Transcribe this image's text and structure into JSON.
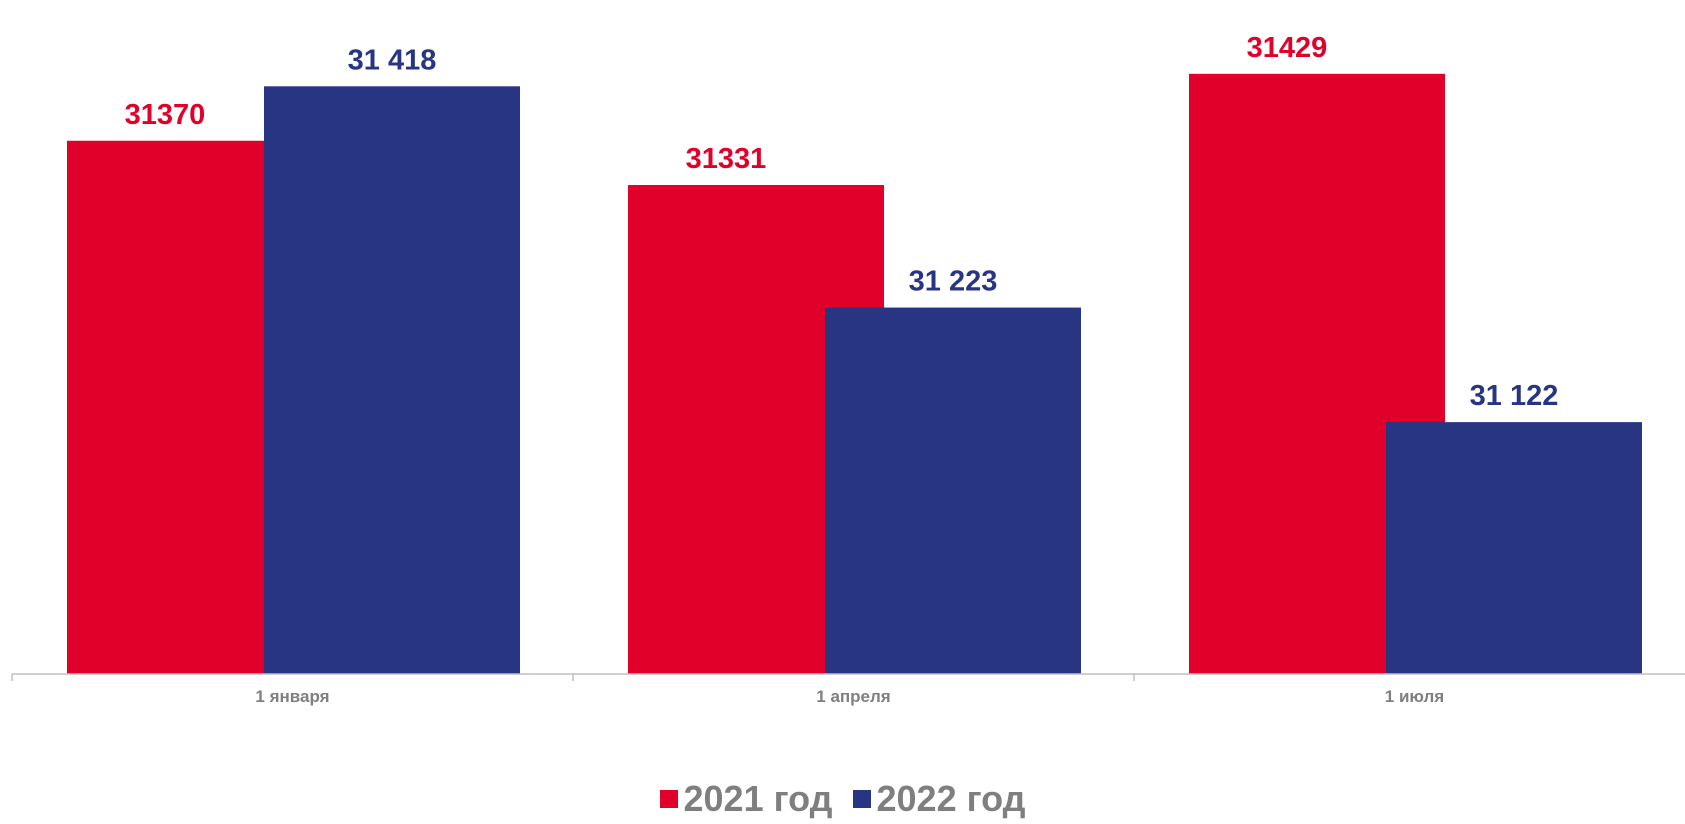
{
  "chart_data": {
    "type": "bar",
    "categories": [
      "1 января",
      "1 апреля",
      "1 июля"
    ],
    "series": [
      {
        "name": "2021 год",
        "values": [
          31370,
          31331,
          31429
        ],
        "labels": [
          "31370",
          "31331",
          "31429"
        ],
        "color": "#e0002a"
      },
      {
        "name": "2022 год",
        "values": [
          31418,
          31223,
          31122
        ],
        "labels": [
          "31 418",
          "31 223",
          "31 122"
        ],
        "color": "#283583"
      }
    ],
    "ylim": [
      30900,
      31450
    ],
    "grid": false,
    "legend_position": "bottom"
  },
  "colors": {
    "axis": "#bfbfbf",
    "tick_label": "#7f7f7f"
  }
}
